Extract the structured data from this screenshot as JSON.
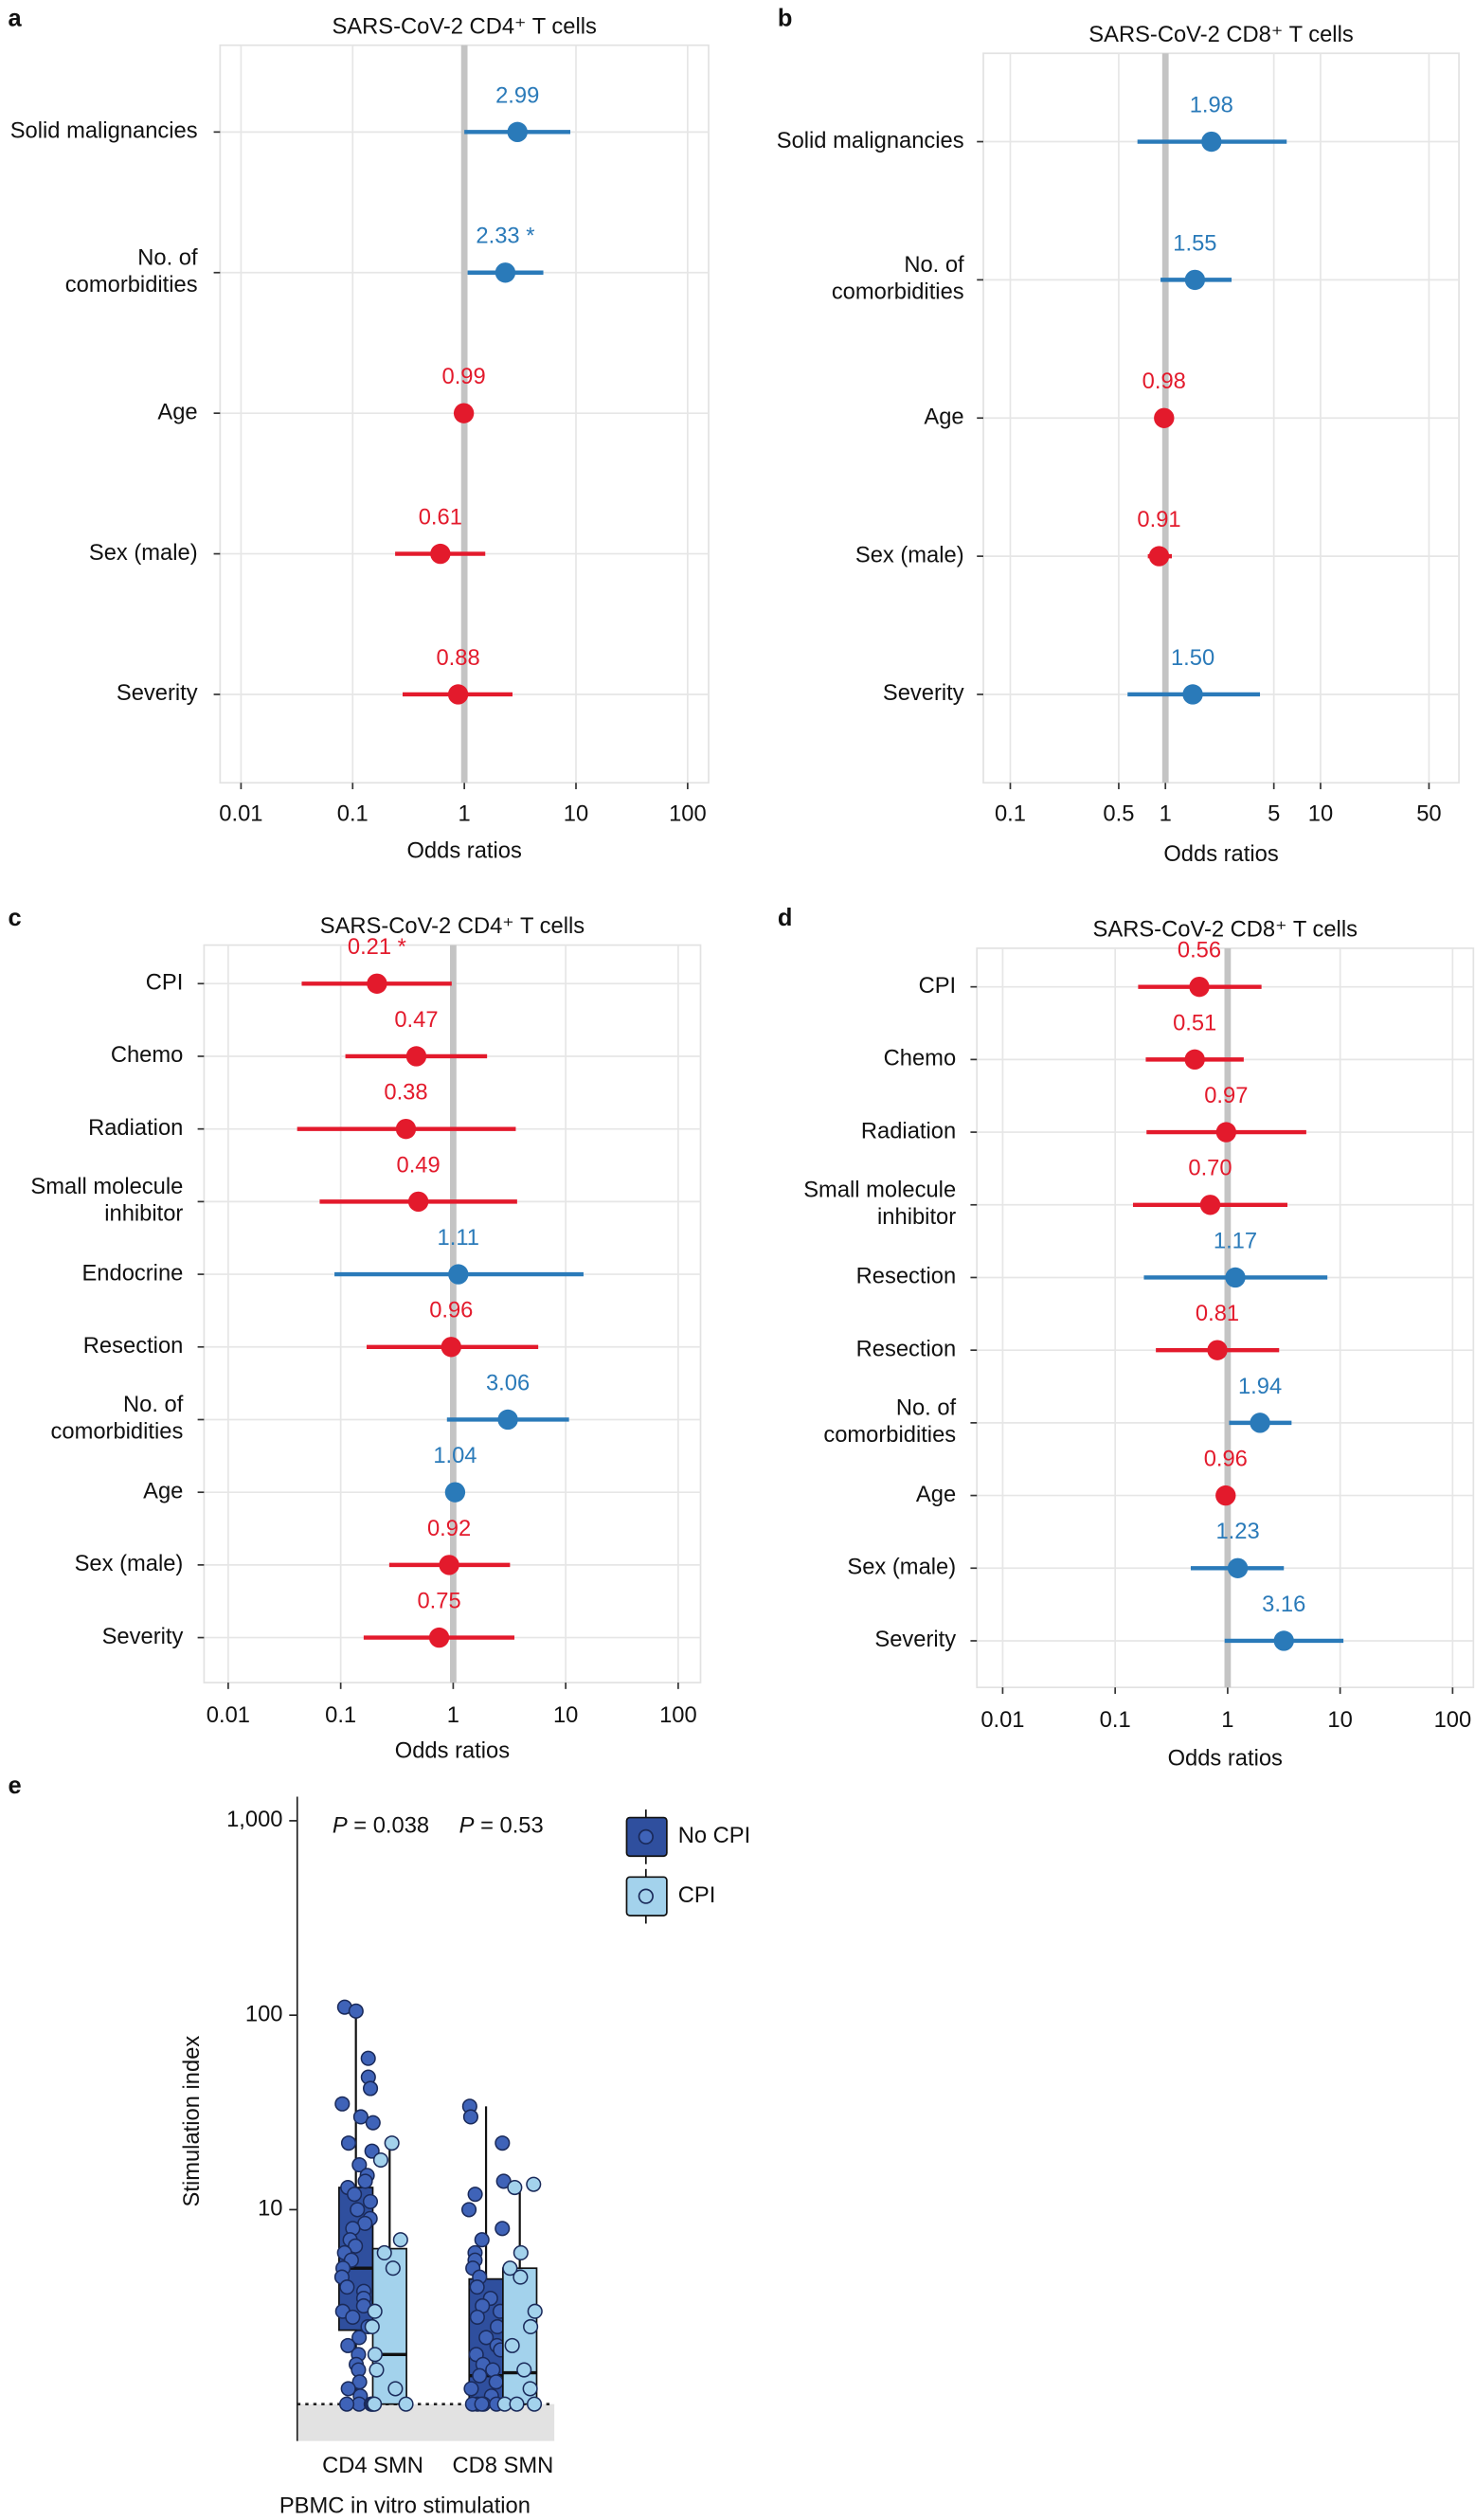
{
  "chart_data": [
    {
      "type": "forest",
      "panel_label": "a",
      "title": "SARS-CoV-2 CD4⁺ T cells",
      "xlabel": "Odds ratios",
      "categories": [
        "Solid malignancies",
        "No. of\ncomorbidities",
        "Age",
        "Sex (male)",
        "Severity"
      ],
      "values": [
        2.99,
        2.33,
        0.99,
        0.61,
        0.88
      ],
      "value_labels": [
        "2.99",
        "2.33 *",
        "0.99",
        "0.61",
        "0.88"
      ],
      "ci_low": [
        1.0,
        1.07,
        0.97,
        0.24,
        0.28
      ],
      "ci_high": [
        8.9,
        5.1,
        1.01,
        1.54,
        2.7
      ],
      "colors": [
        "#2a7ab9",
        "#2a7ab9",
        "#e31a2c",
        "#e31a2c",
        "#e31a2c"
      ],
      "xscale": "log",
      "xlim": [
        0.0065,
        154
      ],
      "xticks": [
        0.01,
        0.1,
        1,
        10,
        100
      ],
      "reference_line": 1,
      "grid": true
    },
    {
      "type": "forest",
      "panel_label": "b",
      "title": "SARS-CoV-2 CD8⁺ T cells",
      "xlabel": "Odds ratios",
      "categories": [
        "Solid malignancies",
        "No. of\ncomorbidities",
        "Age",
        "Sex (male)",
        "Severity"
      ],
      "values": [
        1.98,
        1.55,
        0.98,
        0.91,
        1.5
      ],
      "value_labels": [
        "1.98",
        "1.55",
        "0.98",
        "0.91",
        "1.50"
      ],
      "ci_low": [
        0.66,
        0.93,
        0.96,
        0.77,
        0.57
      ],
      "ci_high": [
        6.05,
        2.67,
        1.0,
        1.1,
        4.07
      ],
      "colors": [
        "#2a7ab9",
        "#2a7ab9",
        "#e31a2c",
        "#e31a2c",
        "#2a7ab9"
      ],
      "xscale": "log",
      "xlim": [
        0.067,
        78
      ],
      "xticks": [
        0.1,
        0.5,
        1,
        5,
        10,
        50
      ],
      "reference_line": 1,
      "grid": true
    },
    {
      "type": "forest",
      "panel_label": "c",
      "title": "SARS-CoV-2 CD4⁺ T cells",
      "xlabel": "Odds ratios",
      "categories": [
        "CPI",
        "Chemo",
        "Radiation",
        "Small molecule\ninhibitor",
        "Endocrine",
        "Resection",
        "No. of\ncomorbidities",
        "Age",
        "Sex (male)",
        "Severity"
      ],
      "values": [
        0.21,
        0.47,
        0.38,
        0.49,
        1.11,
        0.96,
        3.06,
        1.04,
        0.92,
        0.75
      ],
      "value_labels": [
        "0.21 *",
        "0.47",
        "0.38",
        "0.49",
        "1.11",
        "0.96",
        "3.06",
        "1.04",
        "0.92",
        "0.75"
      ],
      "ci_low": [
        0.045,
        0.11,
        0.041,
        0.065,
        0.088,
        0.17,
        0.88,
        1.02,
        0.27,
        0.16
      ],
      "ci_high": [
        0.97,
        2.0,
        3.6,
        3.7,
        14.4,
        5.7,
        10.7,
        1.06,
        3.2,
        3.5
      ],
      "colors": [
        "#e31a2c",
        "#e31a2c",
        "#e31a2c",
        "#e31a2c",
        "#2a7ab9",
        "#e31a2c",
        "#2a7ab9",
        "#2a7ab9",
        "#e31a2c",
        "#e31a2c"
      ],
      "xscale": "log",
      "xlim": [
        0.0061,
        158
      ],
      "xticks": [
        0.01,
        0.1,
        1,
        10,
        100
      ],
      "reference_line": 1,
      "grid": true
    },
    {
      "type": "forest",
      "panel_label": "d",
      "title": "SARS-CoV-2 CD8⁺ T cells",
      "xlabel": "Odds ratios",
      "categories": [
        "CPI",
        "Chemo",
        "Radiation",
        "Small molecule\ninhibitor",
        "Resection",
        "Resection",
        "No. of\ncomorbidities",
        "Age",
        "Sex (male)",
        "Severity"
      ],
      "values": [
        0.56,
        0.51,
        0.97,
        0.7,
        1.17,
        0.81,
        1.94,
        0.96,
        1.23,
        3.16
      ],
      "value_labels": [
        "0.56",
        "0.51",
        "0.97",
        "0.70",
        "1.17",
        "0.81",
        "1.94",
        "0.96",
        "1.23",
        "3.16"
      ],
      "ci_low": [
        0.16,
        0.187,
        0.19,
        0.144,
        0.18,
        0.23,
        1.03,
        0.94,
        0.47,
        0.94
      ],
      "ci_high": [
        2.0,
        1.39,
        5.0,
        3.4,
        7.7,
        2.87,
        3.7,
        0.98,
        3.16,
        10.7
      ],
      "colors": [
        "#e31a2c",
        "#e31a2c",
        "#e31a2c",
        "#e31a2c",
        "#2a7ab9",
        "#e31a2c",
        "#2a7ab9",
        "#e31a2c",
        "#2a7ab9",
        "#2a7ab9"
      ],
      "xscale": "log",
      "xlim": [
        0.0059,
        153
      ],
      "xticks": [
        0.01,
        0.1,
        1,
        10,
        100
      ],
      "reference_line": 1,
      "grid": true
    },
    {
      "type": "box",
      "panel_label": "e",
      "ylabel": "Stimulation index",
      "xlabel": "PBMC in vitro stimulation",
      "categories": [
        "CD4 SMN",
        "CD8 SMN"
      ],
      "annotations": [
        "P = 0.038",
        "P = 0.53"
      ],
      "yscale": "log",
      "ylim": [
        0.646,
        1330
      ],
      "yticks": [
        {
          "value": 1000,
          "label": "1,000"
        },
        100,
        10
      ],
      "reference_line": 1,
      "legend": "top-right",
      "series": [
        {
          "name": "No CPI",
          "color": "#2f4f9e",
          "point_color": "#3f63b8",
          "boxes": [
            {
              "whisker_low": 1,
              "q1": 2.4,
              "median": 5,
              "q3": 13,
              "whisker_high": 110
            },
            {
              "whisker_low": 1,
              "q1": 1,
              "median": 1.4,
              "q3": 4.4,
              "whisker_high": 34
            }
          ],
          "points": [
            [
              110,
              105,
              60,
              48,
              42,
              35,
              30,
              28,
              22,
              20,
              17,
              15,
              14,
              13,
              12,
              11,
              10,
              9,
              8.5,
              8,
              7,
              6.5,
              6,
              5.5,
              5,
              4.5,
              4,
              3.8,
              3.5,
              3.2,
              3,
              2.8,
              2.5,
              2.2,
              2,
              1.8,
              1.6,
              1.5,
              1.3,
              1.2,
              1.1,
              1,
              1,
              1,
              1
            ],
            [
              34,
              30,
              22,
              14,
              12,
              10,
              8,
              7,
              6,
              5.5,
              5,
              4.5,
              4,
              3.5,
              3.2,
              3,
              2.8,
              2.5,
              2.2,
              2,
              1.9,
              1.8,
              1.6,
              1.5,
              1.4,
              1.3,
              1.2,
              1.1,
              1,
              1,
              1,
              1,
              1
            ]
          ]
        },
        {
          "name": "CPI",
          "color": "#a3d2ec",
          "point_color": "#a3d2ec",
          "boxes": [
            {
              "whisker_low": 1,
              "q1": 1,
              "median": 1.8,
              "q3": 6.3,
              "whisker_high": 22.6
            },
            {
              "whisker_low": 1,
              "q1": 1,
              "median": 1.45,
              "q3": 5,
              "whisker_high": 13
            }
          ],
          "points": [
            [
              22,
              18,
              7,
              6,
              5,
              3,
              2.5,
              1.8,
              1.5,
              1.2,
              1,
              1,
              1
            ],
            [
              13.5,
              13,
              6,
              5,
              4.5,
              3,
              2.5,
              2,
              1.5,
              1.2,
              1,
              1,
              1
            ]
          ]
        }
      ]
    }
  ]
}
